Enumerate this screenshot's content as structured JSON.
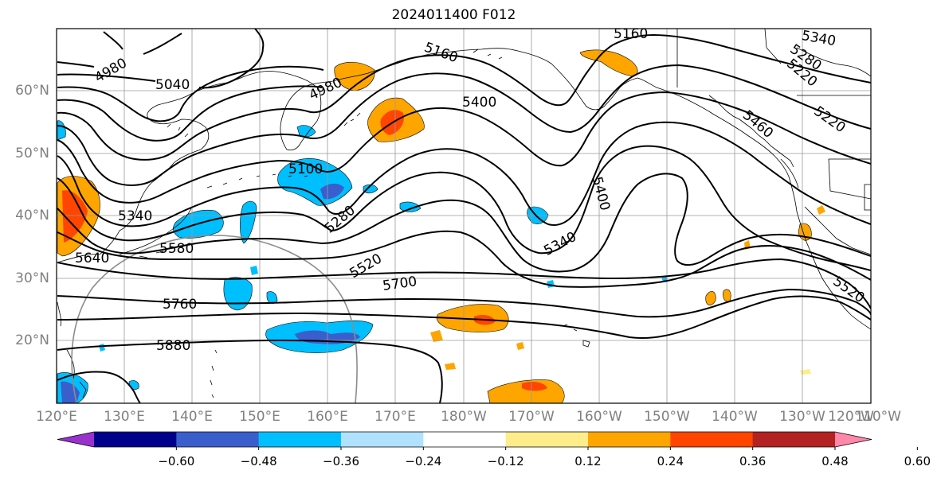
{
  "title": "2024011400 F012",
  "lat_labels": [
    "60°N",
    "50°N",
    "40°N",
    "30°N",
    "20°N"
  ],
  "lon_labels": [
    "120°E",
    "130°E",
    "140°E",
    "150°E",
    "160°E",
    "170°E",
    "180°W",
    "170°W",
    "160°W",
    "150°W",
    "140°W",
    "130°W",
    "120°W",
    "110°W"
  ],
  "colorbar": {
    "colors": [
      "#9932CC",
      "#00008B",
      "#3A5FCD",
      "#00BFFF",
      "#B0E2FF",
      "#FFFFFF",
      "#FFEC8B",
      "#FFA500",
      "#FF4500",
      "#B22222",
      "#FF88AA"
    ],
    "ticks": [
      "−0.60",
      "−0.48",
      "−0.36",
      "−0.24",
      "−0.12",
      "0.12",
      "0.24",
      "0.36",
      "0.48",
      "0.60"
    ]
  },
  "contour_labels": [
    "4980",
    "5040",
    "4980",
    "5160",
    "5160",
    "5340",
    "5280",
    "5220",
    "5220",
    "5400",
    "5460",
    "5100",
    "5280",
    "5340",
    "5400",
    "5340",
    "5520",
    "5580",
    "5640",
    "5700",
    "5760",
    "5880",
    "5520"
  ]
}
